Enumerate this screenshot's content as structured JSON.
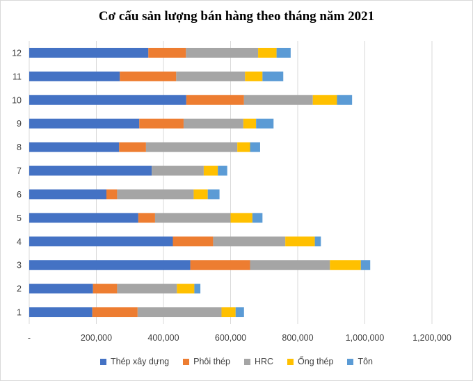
{
  "chart_data": {
    "type": "bar",
    "orientation": "horizontal",
    "stacked": true,
    "title": "Cơ cấu sản lượng bán hàng theo tháng năm 2021",
    "categories": [
      "1",
      "2",
      "3",
      "4",
      "5",
      "6",
      "7",
      "8",
      "9",
      "10",
      "11",
      "12"
    ],
    "xlim": [
      0,
      1200000
    ],
    "x_ticks": [
      0,
      200000,
      400000,
      600000,
      800000,
      1000000,
      1200000
    ],
    "x_tick_labels": [
      "-",
      "200,000",
      "400,000",
      "600,000",
      "800,000",
      "1,000,000",
      "1,200,000"
    ],
    "grid": true,
    "legend_position": "bottom",
    "series": [
      {
        "name": "Thép xây dựng",
        "color": "#4472C4",
        "values": [
          188000,
          190000,
          480000,
          428000,
          325000,
          230000,
          365000,
          268000,
          328000,
          468000,
          270000,
          355000
        ]
      },
      {
        "name": "Phôi thép",
        "color": "#ED7D31",
        "values": [
          135000,
          72000,
          178000,
          120000,
          50000,
          32000,
          0,
          80000,
          132000,
          172000,
          168000,
          112000
        ]
      },
      {
        "name": "HRC",
        "color": "#A5A5A5",
        "values": [
          250000,
          178000,
          238000,
          215000,
          225000,
          228000,
          155000,
          272000,
          178000,
          205000,
          205000,
          215000
        ]
      },
      {
        "name": "Ống thép",
        "color": "#FFC000",
        "values": [
          42000,
          52000,
          92000,
          88000,
          65000,
          42000,
          42000,
          38000,
          38000,
          72000,
          52000,
          55000
        ]
      },
      {
        "name": "Tôn",
        "color": "#5B9BD5",
        "values": [
          25000,
          18000,
          28000,
          18000,
          30000,
          35000,
          28000,
          30000,
          52000,
          45000,
          62000,
          42000
        ]
      }
    ]
  }
}
